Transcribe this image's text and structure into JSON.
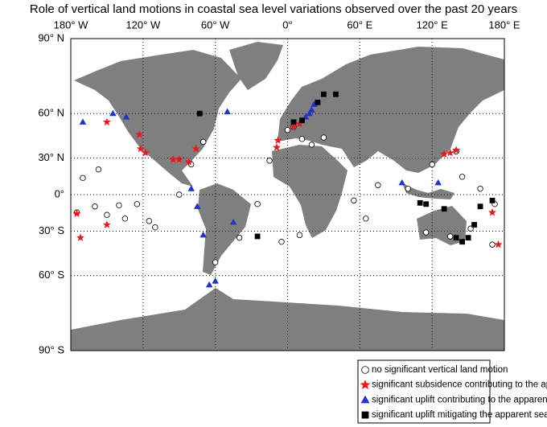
{
  "map": {
    "title": "Role of vertical land motions in coastal sea level variations observed over the past 20 years",
    "xlim": [
      -180,
      180
    ],
    "ylim": [
      -90,
      90
    ],
    "xticks": [
      {
        "value": -180,
        "label": "180° W"
      },
      {
        "value": -120,
        "label": "120° W"
      },
      {
        "value": -60,
        "label": "60° W"
      },
      {
        "value": 0,
        "label": "0°"
      },
      {
        "value": 60,
        "label": "60° E"
      },
      {
        "value": 120,
        "label": "120° E"
      },
      {
        "value": 180,
        "label": "180° E"
      }
    ],
    "yticks": [
      {
        "value": 90,
        "label": "90° N"
      },
      {
        "value": 60,
        "label": "60° N"
      },
      {
        "value": 30,
        "label": "30° N"
      },
      {
        "value": 0,
        "label": "0°"
      },
      {
        "value": -30,
        "label": "30° S"
      },
      {
        "value": -60,
        "label": "60° S"
      },
      {
        "value": -90,
        "label": "90° S"
      }
    ],
    "grid": true,
    "legend": [
      {
        "label": "no significant vertical land motion",
        "marker": "circle",
        "color": "#ffffff",
        "stations": [
          [
            -157,
            21
          ],
          [
            -160,
            -10
          ],
          [
            -175,
            -15
          ],
          [
            -150,
            -17
          ],
          [
            -140,
            -9
          ],
          [
            -170,
            14
          ],
          [
            -110,
            -27
          ],
          [
            -90,
            0
          ],
          [
            -125,
            -8
          ],
          [
            -135,
            -20
          ],
          [
            -115,
            -22
          ],
          [
            -80,
            25
          ],
          [
            -70,
            42
          ],
          [
            5,
            52
          ],
          [
            12,
            44
          ],
          [
            20,
            40
          ],
          [
            30,
            45
          ],
          [
            0,
            50
          ],
          [
            140,
            35
          ],
          [
            145,
            15
          ],
          [
            160,
            5
          ],
          [
            172,
            -8
          ],
          [
            115,
            -31
          ],
          [
            135,
            -34
          ],
          [
            152,
            -28
          ],
          [
            65,
            -20
          ],
          [
            55,
            -5
          ],
          [
            -15,
            28
          ],
          [
            -25,
            -8
          ],
          [
            10,
            -33
          ],
          [
            -5,
            -38
          ],
          [
            75,
            8
          ],
          [
            100,
            5
          ],
          [
            120,
            25
          ],
          [
            170,
            -40
          ],
          [
            -60,
            -52
          ],
          [
            -40,
            -35
          ]
        ]
      },
      {
        "label": "significant subsidence contributing to the apparent sea level rise at coast",
        "marker": "star",
        "color": "#e8191d",
        "stations": [
          [
            -76,
            37
          ],
          [
            -90,
            29
          ],
          [
            -95,
            29
          ],
          [
            -82,
            27
          ],
          [
            -122,
            37
          ],
          [
            -123,
            47
          ],
          [
            -118,
            34
          ],
          [
            140,
            36
          ],
          [
            135,
            34
          ],
          [
            130,
            33
          ],
          [
            10,
            54
          ],
          [
            5,
            52
          ],
          [
            -8,
            43
          ],
          [
            -150,
            -25
          ],
          [
            -175,
            -16
          ],
          [
            -172,
            -35
          ],
          [
            175,
            -40
          ],
          [
            170,
            -15
          ],
          [
            -150,
            55
          ],
          [
            -9,
            38
          ]
        ]
      },
      {
        "label": "significant uplift  contributing to the apparent sea level drop at coast",
        "marker": "triangle",
        "color": "#2233cc",
        "stations": [
          [
            -145,
            60
          ],
          [
            -134,
            58
          ],
          [
            -170,
            55
          ],
          [
            20,
            62
          ],
          [
            18,
            60
          ],
          [
            22,
            65
          ],
          [
            15,
            58
          ],
          [
            -65,
            -65
          ],
          [
            -60,
            -63
          ],
          [
            -45,
            -23
          ],
          [
            -70,
            -33
          ],
          [
            -50,
            61
          ],
          [
            -75,
            -10
          ],
          [
            -80,
            5
          ],
          [
            95,
            10
          ],
          [
            125,
            10
          ]
        ]
      },
      {
        "label": "significant uplift mitigating the apparent sea level rise at coast",
        "marker": "square",
        "color": "#000000",
        "stations": [
          [
            25,
            66
          ],
          [
            30,
            70
          ],
          [
            40,
            70
          ],
          [
            110,
            -7
          ],
          [
            115,
            -8
          ],
          [
            145,
            -38
          ],
          [
            150,
            -35
          ],
          [
            130,
            -12
          ],
          [
            5,
            55
          ],
          [
            12,
            56
          ],
          [
            170,
            -5
          ],
          [
            160,
            -10
          ],
          [
            155,
            -25
          ],
          [
            140,
            -35
          ],
          [
            -73,
            60
          ],
          [
            -25,
            -34
          ]
        ]
      }
    ]
  }
}
